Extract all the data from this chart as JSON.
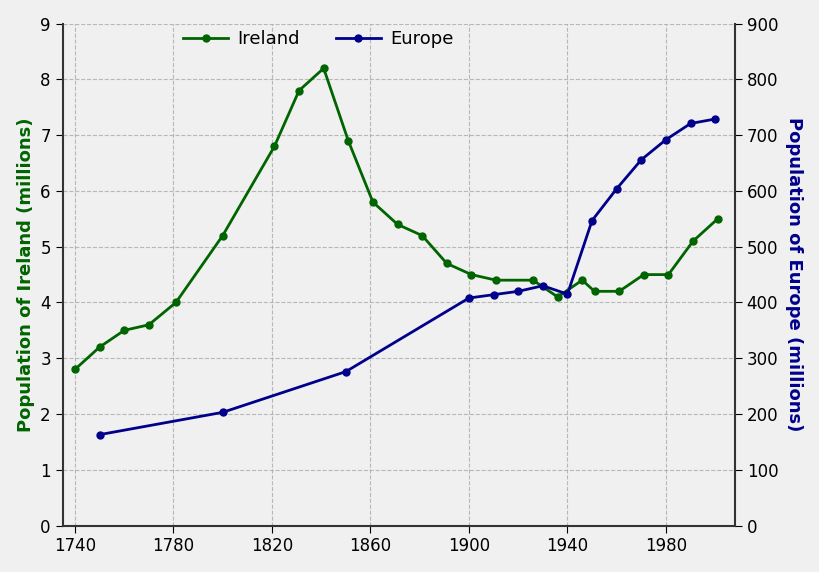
{
  "ireland_x": [
    1740,
    1750,
    1760,
    1770,
    1781,
    1800,
    1821,
    1831,
    1841,
    1851,
    1861,
    1871,
    1881,
    1891,
    1901,
    1911,
    1926,
    1936,
    1946,
    1951,
    1961,
    1971,
    1981,
    1991,
    2001
  ],
  "ireland_y": [
    2.8,
    3.2,
    3.5,
    3.6,
    4.0,
    5.2,
    6.8,
    7.8,
    8.2,
    6.9,
    5.8,
    5.4,
    5.2,
    4.7,
    4.5,
    4.4,
    4.4,
    4.1,
    4.4,
    4.2,
    4.2,
    4.5,
    4.5,
    5.1,
    5.5
  ],
  "europe_x": [
    1750,
    1800,
    1850,
    1900,
    1910,
    1920,
    1930,
    1940,
    1950,
    1960,
    1970,
    1980,
    1990,
    2000
  ],
  "europe_y": [
    163,
    203,
    276,
    408,
    414,
    420,
    430,
    415,
    547,
    604,
    656,
    692,
    721,
    729
  ],
  "ireland_color": "#006400",
  "europe_color": "#00008B",
  "ylabel_left": "Population of Ireland (millions)",
  "ylabel_right": "Population of Europe (millions)",
  "ylim_left": [
    0,
    9
  ],
  "ylim_right": [
    0,
    900
  ],
  "yticks_left": [
    0,
    1,
    2,
    3,
    4,
    5,
    6,
    7,
    8,
    9
  ],
  "yticks_right": [
    0,
    100,
    200,
    300,
    400,
    500,
    600,
    700,
    800,
    900
  ],
  "xticks": [
    1740,
    1780,
    1820,
    1860,
    1900,
    1940,
    1980
  ],
  "xlim": [
    1735,
    2008
  ],
  "legend_ireland": "Ireland",
  "legend_europe": "Europe",
  "background_color": "#f0f0f0",
  "grid_color": "#aaaaaa",
  "tick_label_color": "#000000",
  "marker": "o",
  "markersize": 5,
  "linewidth": 2,
  "ylabel_fontsize": 13,
  "tick_fontsize": 12,
  "legend_fontsize": 13
}
